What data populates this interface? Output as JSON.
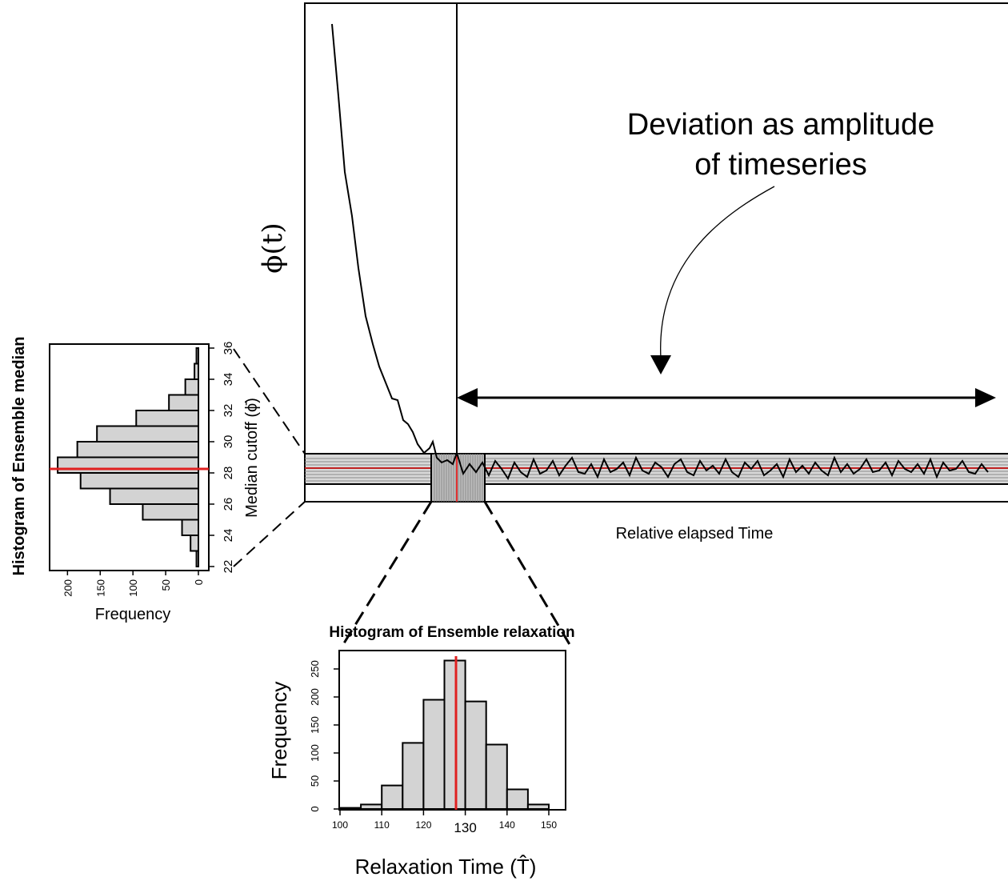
{
  "main": {
    "phi_label": "ϕ(t)",
    "annotation_line1": "Deviation as amplitude",
    "annotation_line2": "of timeseries",
    "x_label": "Relative elapsed Time"
  },
  "median_hist": {
    "title": "Histogram of Ensemble median",
    "axis_label": "Median cutoff (ϕ̄)",
    "freq_label": "Frequency",
    "cutoff_ticks": [
      "22",
      "24",
      "26",
      "28",
      "30",
      "32",
      "34",
      "36"
    ],
    "freq_ticks": [
      "200",
      "150",
      "100",
      "50",
      "0"
    ]
  },
  "relax_hist": {
    "title": "Histogram of Ensemble relaxation",
    "y_label": "Frequency",
    "x_label": "Relaxation Time (T̂)",
    "x_ticks": [
      "100",
      "110",
      "120",
      "130",
      "140",
      "150"
    ],
    "y_ticks": [
      "0",
      "50",
      "100",
      "150",
      "200",
      "250"
    ]
  },
  "colors": {
    "bar_fill": "#d3d3d3",
    "median_line": "#e02020",
    "ink": "#000000"
  },
  "chart_data": [
    {
      "type": "line",
      "description_role": "phi(t) relaxation timeseries",
      "ylabel": "ϕ(t)",
      "xlabel": "Relative elapsed Time"
    },
    {
      "type": "bar",
      "title": "Histogram of Ensemble median",
      "orientation": "horizontal",
      "categories": [
        "22-23",
        "23-24",
        "24-25",
        "25-26",
        "26-27",
        "27-28",
        "28-29",
        "29-30",
        "30-31",
        "31-32",
        "32-33",
        "33-34",
        "34-35",
        "35-36"
      ],
      "values": [
        3,
        12,
        25,
        85,
        135,
        180,
        215,
        185,
        155,
        95,
        45,
        20,
        6,
        3
      ],
      "ylabel": "Median cutoff (ϕ̄)",
      "xlabel": "Frequency",
      "xlim": [
        0,
        220
      ],
      "ylim": [
        22,
        36
      ],
      "median": 28
    },
    {
      "type": "bar",
      "title": "Histogram of Ensemble relaxation",
      "categories": [
        "100-105",
        "105-110",
        "110-115",
        "115-120",
        "120-125",
        "125-130",
        "130-135",
        "135-140",
        "140-145",
        "145-150"
      ],
      "values": [
        2,
        8,
        42,
        118,
        195,
        265,
        192,
        115,
        35,
        8
      ],
      "xlabel": "Relaxation Time (T̂)",
      "ylabel": "Frequency",
      "xlim": [
        100,
        150
      ],
      "ylim": [
        0,
        260
      ],
      "median": 128
    }
  ]
}
